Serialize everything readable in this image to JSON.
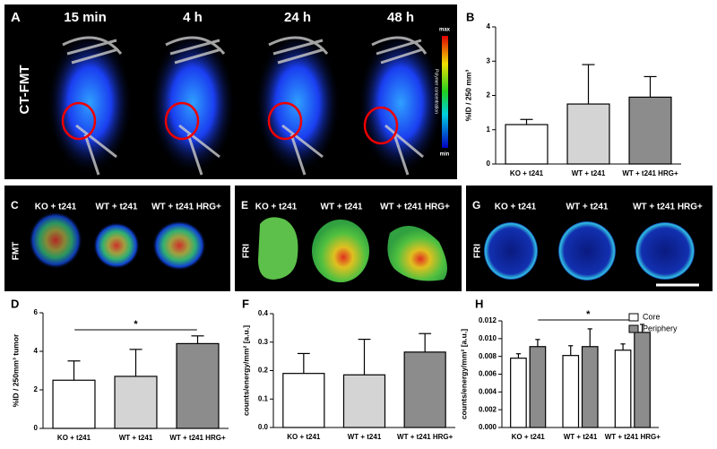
{
  "panels": {
    "A": {
      "letter": "A",
      "times": [
        "15 min",
        "4 h",
        "24 h",
        "48 h"
      ],
      "label": "CT-FMT",
      "scale_max": "max",
      "scale_min": "min",
      "scale_label": "Polymer concentration"
    },
    "C": {
      "letter": "C",
      "label": "FMT",
      "groups": [
        "KO + t241",
        "WT + t241",
        "WT + t241 HRG+"
      ]
    },
    "E": {
      "letter": "E",
      "label": "FRI",
      "groups": [
        "KO + t241",
        "WT + t241",
        "WT + t241 HRG+"
      ]
    },
    "G": {
      "letter": "G",
      "label": "FRI",
      "groups": [
        "KO + t241",
        "WT + t241",
        "WT + t241 HRG+"
      ]
    }
  },
  "chart_data": [
    {
      "type": "bar",
      "panel": "B",
      "ylabel": "%ID / 250 mm³",
      "categories": [
        "KO + t241",
        "WT + t241",
        "WT + t241 HRG+"
      ],
      "values": [
        1.15,
        1.75,
        1.95
      ],
      "errors": [
        0.15,
        1.15,
        0.6
      ],
      "colors": [
        "#ffffff",
        "#d4d4d4",
        "#8c8c8c"
      ],
      "ylim": [
        0,
        4
      ],
      "yticks": [
        0,
        1,
        2,
        3,
        4
      ]
    },
    {
      "type": "bar",
      "panel": "D",
      "ylabel": "%ID / 250mm³ tumor",
      "categories": [
        "KO + t241",
        "WT + t241",
        "WT + t241 HRG+"
      ],
      "values": [
        2.5,
        2.7,
        4.4
      ],
      "errors": [
        1.0,
        1.4,
        0.4
      ],
      "colors": [
        "#ffffff",
        "#d4d4d4",
        "#8c8c8c"
      ],
      "ylim": [
        0,
        6
      ],
      "yticks": [
        0,
        2,
        4,
        6
      ],
      "significance": "*"
    },
    {
      "type": "bar",
      "panel": "F",
      "ylabel": "counts/energy/mm² [a.u.]",
      "categories": [
        "KO + t241",
        "WT + t241",
        "WT + t241 HRG+"
      ],
      "values": [
        0.19,
        0.185,
        0.265
      ],
      "errors": [
        0.07,
        0.125,
        0.065
      ],
      "colors": [
        "#ffffff",
        "#d4d4d4",
        "#8c8c8c"
      ],
      "ylim": [
        0,
        0.4
      ],
      "yticks": [
        {
          "value": 0,
          "label": "0.0"
        },
        0.1,
        0.2,
        0.3,
        0.4
      ]
    },
    {
      "type": "bar",
      "panel": "H",
      "ylabel": "counts/energy/mm² [a.u.]",
      "categories": [
        "KO + t241",
        "WT + t241",
        "WT + t241 HRG+"
      ],
      "series": [
        {
          "name": "Core",
          "color": "#ffffff",
          "values": [
            0.0078,
            0.0081,
            0.0087
          ],
          "errors": [
            0.0005,
            0.0011,
            0.0007
          ]
        },
        {
          "name": "Periphery",
          "color": "#8c8c8c",
          "values": [
            0.0091,
            0.0091,
            0.0107
          ],
          "errors": [
            0.0008,
            0.002,
            0.0009
          ]
        }
      ],
      "ylim": [
        0,
        0.012
      ],
      "yticks": [
        {
          "value": 0,
          "label": "0.000"
        },
        {
          "value": 0.002,
          "label": "0.002"
        },
        {
          "value": 0.004,
          "label": "0.004"
        },
        {
          "value": 0.006,
          "label": "0.006"
        },
        {
          "value": 0.008,
          "label": "0.008"
        },
        {
          "value": 0.01,
          "label": "0.010"
        },
        {
          "value": 0.012,
          "label": "0.012"
        }
      ],
      "legend": "upper right",
      "significance": "*"
    }
  ]
}
